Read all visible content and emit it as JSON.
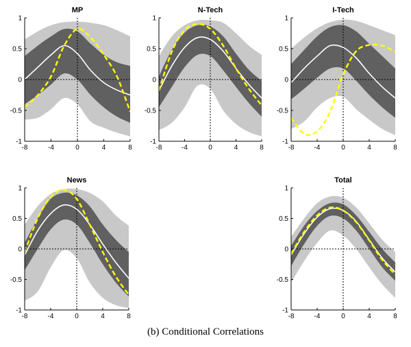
{
  "caption": "(b) Conditional Correlations",
  "colors": {
    "outer_band": "#c8c8c8",
    "inner_band": "#606060",
    "median_line": "#ffffff",
    "data_line": "#ffff00",
    "axis": "#000000"
  },
  "chart_data": [
    {
      "type": "line",
      "title": "MP",
      "xlim": [
        -8,
        8
      ],
      "ylim": [
        -1,
        1
      ],
      "xticks": [
        -8,
        -4,
        0,
        4,
        8
      ],
      "yticks": [
        -1,
        -0.5,
        0,
        0.5,
        1
      ],
      "x": [
        -8,
        -6,
        -4,
        -2,
        0,
        2,
        4,
        6,
        8
      ],
      "bands": {
        "outer_upper": [
          0.65,
          0.78,
          0.88,
          0.93,
          0.94,
          0.92,
          0.88,
          0.8,
          0.7
        ],
        "inner_upper": [
          0.38,
          0.55,
          0.7,
          0.82,
          0.78,
          0.58,
          0.4,
          0.28,
          0.22
        ],
        "median": [
          0.0,
          0.2,
          0.4,
          0.55,
          0.42,
          0.15,
          -0.05,
          -0.17,
          -0.25
        ],
        "inner_lower": [
          -0.4,
          -0.25,
          -0.08,
          0.1,
          0.0,
          -0.25,
          -0.45,
          -0.6,
          -0.7
        ],
        "outer_lower": [
          -0.65,
          -0.62,
          -0.48,
          -0.3,
          -0.4,
          -0.68,
          -0.78,
          -0.86,
          -0.92
        ]
      },
      "series": [
        {
          "values": [
            -0.45,
            -0.25,
            0.05,
            0.55,
            0.82,
            0.68,
            0.4,
            0.05,
            -0.52
          ]
        }
      ]
    },
    {
      "type": "line",
      "title": "N-Tech",
      "xlim": [
        -8,
        8
      ],
      "ylim": [
        -1,
        1
      ],
      "xticks": [
        -8,
        -4,
        0,
        4,
        8
      ],
      "yticks": [
        -1,
        -0.5,
        0,
        0.5,
        1
      ],
      "x": [
        -8,
        -6,
        -4,
        -2,
        0,
        2,
        4,
        6,
        8
      ],
      "bands": {
        "outer_upper": [
          0.38,
          0.7,
          0.88,
          0.96,
          0.96,
          0.92,
          0.75,
          0.55,
          0.4
        ],
        "inner_upper": [
          0.05,
          0.48,
          0.76,
          0.88,
          0.86,
          0.7,
          0.42,
          0.16,
          -0.02
        ],
        "median": [
          -0.18,
          0.22,
          0.52,
          0.68,
          0.65,
          0.46,
          0.18,
          -0.08,
          -0.3
        ],
        "inner_lower": [
          -0.45,
          -0.12,
          0.2,
          0.4,
          0.38,
          0.15,
          -0.12,
          -0.38,
          -0.6
        ],
        "outer_lower": [
          -0.82,
          -0.7,
          -0.45,
          -0.1,
          -0.15,
          -0.5,
          -0.72,
          -0.85,
          -0.92
        ]
      },
      "series": [
        {
          "values": [
            -0.18,
            0.45,
            0.8,
            0.9,
            0.82,
            0.55,
            0.18,
            -0.15,
            -0.42
          ]
        }
      ]
    },
    {
      "type": "line",
      "title": "I-Tech",
      "xlim": [
        -8,
        8
      ],
      "ylim": [
        -1,
        1
      ],
      "xticks": [
        -8,
        -4,
        0,
        4,
        8
      ],
      "yticks": [
        -1,
        -0.5,
        0,
        0.5,
        1
      ],
      "x": [
        -8,
        -6,
        -4,
        -2,
        0,
        2,
        4,
        6,
        8
      ],
      "bands": {
        "outer_upper": [
          0.5,
          0.68,
          0.83,
          0.93,
          0.97,
          0.95,
          0.88,
          0.8,
          0.72
        ],
        "inner_upper": [
          0.25,
          0.48,
          0.7,
          0.85,
          0.88,
          0.78,
          0.58,
          0.38,
          0.18
        ],
        "median": [
          -0.05,
          0.18,
          0.38,
          0.55,
          0.52,
          0.35,
          0.1,
          -0.12,
          -0.3
        ],
        "inner_lower": [
          -0.32,
          -0.15,
          0.03,
          0.18,
          0.18,
          -0.02,
          -0.25,
          -0.45,
          -0.62
        ],
        "outer_lower": [
          -0.8,
          -0.68,
          -0.45,
          -0.3,
          -0.28,
          -0.48,
          -0.65,
          -0.8,
          -0.9
        ]
      },
      "series": [
        {
          "values": [
            -0.62,
            -0.88,
            -0.84,
            -0.52,
            0.08,
            0.46,
            0.56,
            0.55,
            0.45
          ]
        }
      ]
    },
    {
      "type": "line",
      "title": "News",
      "xlim": [
        -8,
        8
      ],
      "ylim": [
        -1,
        1
      ],
      "xticks": [
        -8,
        -4,
        0,
        4,
        8
      ],
      "yticks": [
        -1,
        -0.5,
        0,
        0.5,
        1
      ],
      "x": [
        -8,
        -6,
        -4,
        -2,
        0,
        2,
        4,
        6,
        8
      ],
      "bands": {
        "outer_upper": [
          0.4,
          0.7,
          0.9,
          0.98,
          0.98,
          0.92,
          0.78,
          0.55,
          0.38
        ],
        "inner_upper": [
          0.1,
          0.5,
          0.82,
          0.92,
          0.88,
          0.7,
          0.4,
          0.15,
          -0.05
        ],
        "median": [
          -0.1,
          0.3,
          0.58,
          0.72,
          0.65,
          0.4,
          0.08,
          -0.22,
          -0.48
        ],
        "inner_lower": [
          -0.35,
          0.0,
          0.32,
          0.48,
          0.4,
          0.1,
          -0.25,
          -0.55,
          -0.78
        ],
        "outer_lower": [
          -0.85,
          -0.7,
          -0.3,
          -0.02,
          -0.15,
          -0.55,
          -0.8,
          -0.92,
          -0.97
        ]
      },
      "series": [
        {
          "values": [
            -0.05,
            0.5,
            0.85,
            0.97,
            0.82,
            0.4,
            -0.05,
            -0.45,
            -0.75
          ]
        }
      ]
    },
    {
      "type": "line",
      "title": "Total",
      "xlim": [
        -8,
        8
      ],
      "ylim": [
        -1,
        1
      ],
      "xticks": [
        -8,
        -4,
        0,
        4,
        8
      ],
      "yticks": [
        -1,
        -0.5,
        0,
        0.5,
        1
      ],
      "x": [
        -8,
        -6,
        -4,
        -2,
        0,
        2,
        4,
        6,
        8
      ],
      "bands": {
        "outer_upper": [
          0.2,
          0.5,
          0.75,
          0.86,
          0.84,
          0.68,
          0.42,
          0.15,
          -0.05
        ],
        "inner_upper": [
          0.05,
          0.38,
          0.62,
          0.75,
          0.73,
          0.55,
          0.28,
          0.0,
          -0.22
        ],
        "median": [
          -0.1,
          0.25,
          0.52,
          0.66,
          0.63,
          0.45,
          0.15,
          -0.15,
          -0.38
        ],
        "inner_lower": [
          -0.28,
          0.08,
          0.38,
          0.54,
          0.5,
          0.3,
          0.0,
          -0.3,
          -0.52
        ],
        "outer_lower": [
          -0.55,
          -0.2,
          0.1,
          0.3,
          0.22,
          0.0,
          -0.3,
          -0.58,
          -0.8
        ]
      },
      "series": [
        {
          "values": [
            -0.08,
            0.28,
            0.55,
            0.68,
            0.63,
            0.44,
            0.14,
            -0.18,
            -0.42
          ]
        }
      ]
    }
  ]
}
